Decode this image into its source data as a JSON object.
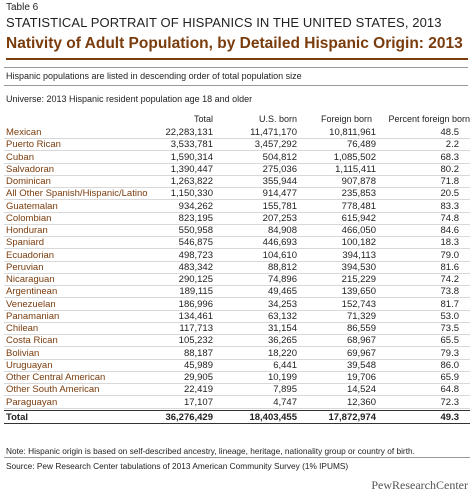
{
  "header": {
    "label": "Table 6",
    "title": "STATISTICAL PORTRAIT OF HISPANICS IN THE UNITED STATES, 2013",
    "subtitle": "Nativity of Adult Population, by Detailed Hispanic Origin: 2013"
  },
  "notes": {
    "order": "Hispanic populations are listed in descending order of total population size",
    "universe": "Universe: 2013 Hispanic resident population age 18 and older"
  },
  "table": {
    "columns": [
      "Total",
      "U.S. born",
      "Foreign born",
      "Percent foreign born"
    ],
    "rows": [
      [
        "Mexican",
        "22,283,131",
        "11,471,170",
        "10,811,961",
        "48.5"
      ],
      [
        "Puerto Rican",
        "3,533,781",
        "3,457,292",
        "76,489",
        "2.2"
      ],
      [
        "Cuban",
        "1,590,314",
        "504,812",
        "1,085,502",
        "68.3"
      ],
      [
        "Salvadoran",
        "1,390,447",
        "275,036",
        "1,115,411",
        "80.2"
      ],
      [
        "Dominican",
        "1,263,822",
        "355,944",
        "907,878",
        "71.8"
      ],
      [
        "All Other Spanish/Hispanic/Latino",
        "1,150,330",
        "914,477",
        "235,853",
        "20.5"
      ],
      [
        "Guatemalan",
        "934,262",
        "155,781",
        "778,481",
        "83.3"
      ],
      [
        "Colombian",
        "823,195",
        "207,253",
        "615,942",
        "74.8"
      ],
      [
        "Honduran",
        "550,958",
        "84,908",
        "466,050",
        "84.6"
      ],
      [
        "Spaniard",
        "546,875",
        "446,693",
        "100,182",
        "18.3"
      ],
      [
        "Ecuadorian",
        "498,723",
        "104,610",
        "394,113",
        "79.0"
      ],
      [
        "Peruvian",
        "483,342",
        "88,812",
        "394,530",
        "81.6"
      ],
      [
        "Nicaraguan",
        "290,125",
        "74,896",
        "215,229",
        "74.2"
      ],
      [
        "Argentinean",
        "189,115",
        "49,465",
        "139,650",
        "73.8"
      ],
      [
        "Venezuelan",
        "186,996",
        "34,253",
        "152,743",
        "81.7"
      ],
      [
        "Panamanian",
        "134,461",
        "63,132",
        "71,329",
        "53.0"
      ],
      [
        "Chilean",
        "117,713",
        "31,154",
        "86,559",
        "73.5"
      ],
      [
        "Costa Rican",
        "105,232",
        "36,265",
        "68,967",
        "65.5"
      ],
      [
        "Bolivian",
        "88,187",
        "18,220",
        "69,967",
        "79.3"
      ],
      [
        "Uruguayan",
        "45,989",
        "6,441",
        "39,548",
        "86.0"
      ],
      [
        "Other Central American",
        "29,905",
        "10,199",
        "19,706",
        "65.9"
      ],
      [
        "Other South American",
        "22,419",
        "7,895",
        "14,524",
        "64.8"
      ],
      [
        "Paraguayan",
        "17,107",
        "4,747",
        "12,360",
        "72.3"
      ]
    ],
    "total": [
      "Total",
      "36,276,429",
      "18,403,455",
      "17,872,974",
      "49.3"
    ]
  },
  "footer": {
    "note": "Note: Hispanic origin is based on self-described ancestry, lineage, heritage, nationality group or country of birth.",
    "source": "Source: Pew Research Center tabulations of 2013 American Community Survey (1% IPUMS)",
    "logo": "PewResearchCenter"
  }
}
